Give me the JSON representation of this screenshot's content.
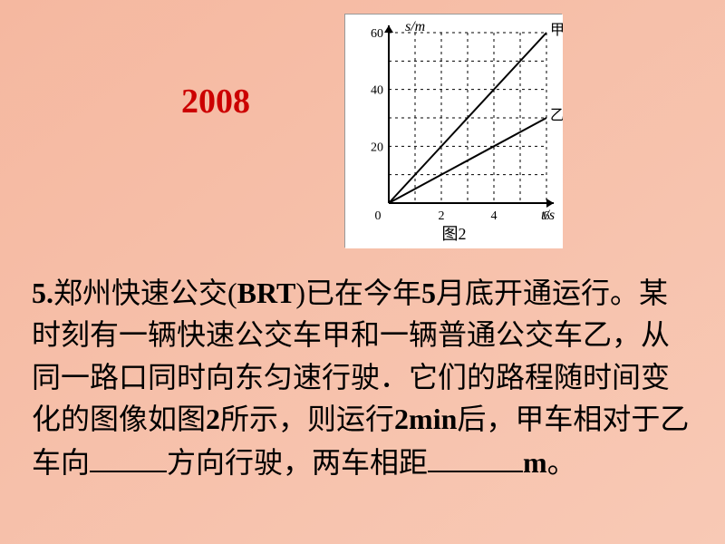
{
  "year": "2008",
  "question": {
    "prefix": "5.",
    "text_parts": [
      "郑州快速公交(",
      ")已在今年",
      "月底开通运行。某时刻有一辆快速公交车甲和一辆普通公交车乙，从同一路口同时向东匀速行驶．它们的路程随时间变化的图像如图",
      "所示，则运行",
      "后，甲车相对于乙车向",
      "方向行驶，两车相距",
      "。"
    ],
    "latin": {
      "brt": "BRT",
      "month": "5",
      "fig": "2",
      "dur_num": "2",
      "dur_unit": "min",
      "unit_m": "m"
    }
  },
  "chart": {
    "type": "line",
    "background_color": "#ffffff",
    "axis_color": "#000000",
    "grid_style": "dashed",
    "grid_color": "#000000",
    "xlabel": "t/s",
    "ylabel": "s/m",
    "xlim": [
      0,
      6
    ],
    "ylim": [
      0,
      60
    ],
    "xtick_step": 2,
    "ytick_step": 20,
    "line_width": 2,
    "series": [
      {
        "name": "甲",
        "points": [
          [
            0,
            0
          ],
          [
            6,
            60
          ]
        ],
        "color": "#000000"
      },
      {
        "name": "乙",
        "points": [
          [
            0,
            0
          ],
          [
            6,
            30
          ]
        ],
        "color": "#000000"
      }
    ],
    "caption": "图2",
    "label_fontsize": 16,
    "tick_fontsize": 14,
    "caption_fontsize": 18,
    "font_family": "SimSun"
  }
}
